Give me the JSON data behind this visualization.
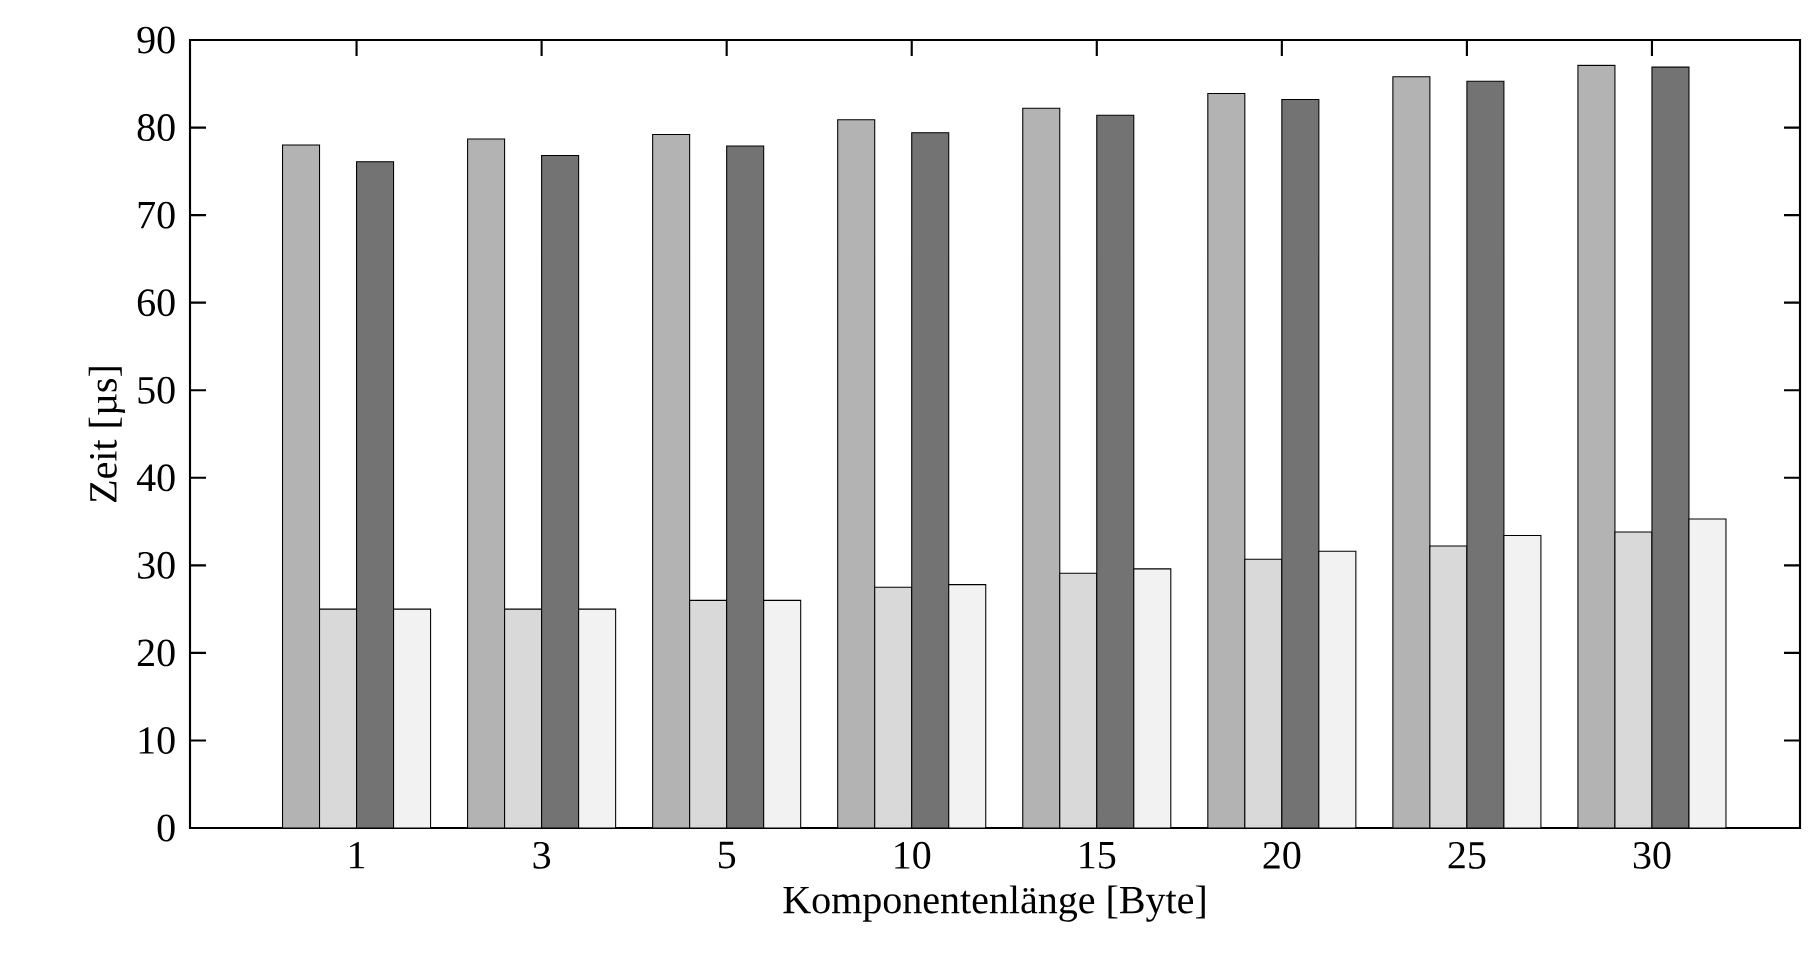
{
  "chart_data": {
    "type": "bar",
    "xlabel": "Komponentenlänge [Byte]",
    "ylabel": "Zeit [µs]",
    "categories": [
      "1",
      "3",
      "5",
      "10",
      "15",
      "20",
      "25",
      "30"
    ],
    "series": [
      {
        "color": "#b3b3b3",
        "values": [
          78,
          78.7,
          79.2,
          80.9,
          82.2,
          83.9,
          85.8,
          87.1
        ]
      },
      {
        "color": "#d9d9d9",
        "values": [
          25,
          25,
          26,
          27.5,
          29.1,
          30.7,
          32.2,
          33.8
        ]
      },
      {
        "color": "#737373",
        "values": [
          76.1,
          76.8,
          77.9,
          79.4,
          81.4,
          83.2,
          85.3,
          86.9
        ]
      },
      {
        "color": "#f2f2f2",
        "values": [
          25,
          25,
          26,
          27.8,
          29.6,
          31.6,
          33.4,
          35.3
        ]
      }
    ],
    "ylim": [
      0,
      90
    ],
    "yticks": [
      0,
      10,
      20,
      30,
      40,
      50,
      60,
      70,
      80,
      90
    ]
  }
}
